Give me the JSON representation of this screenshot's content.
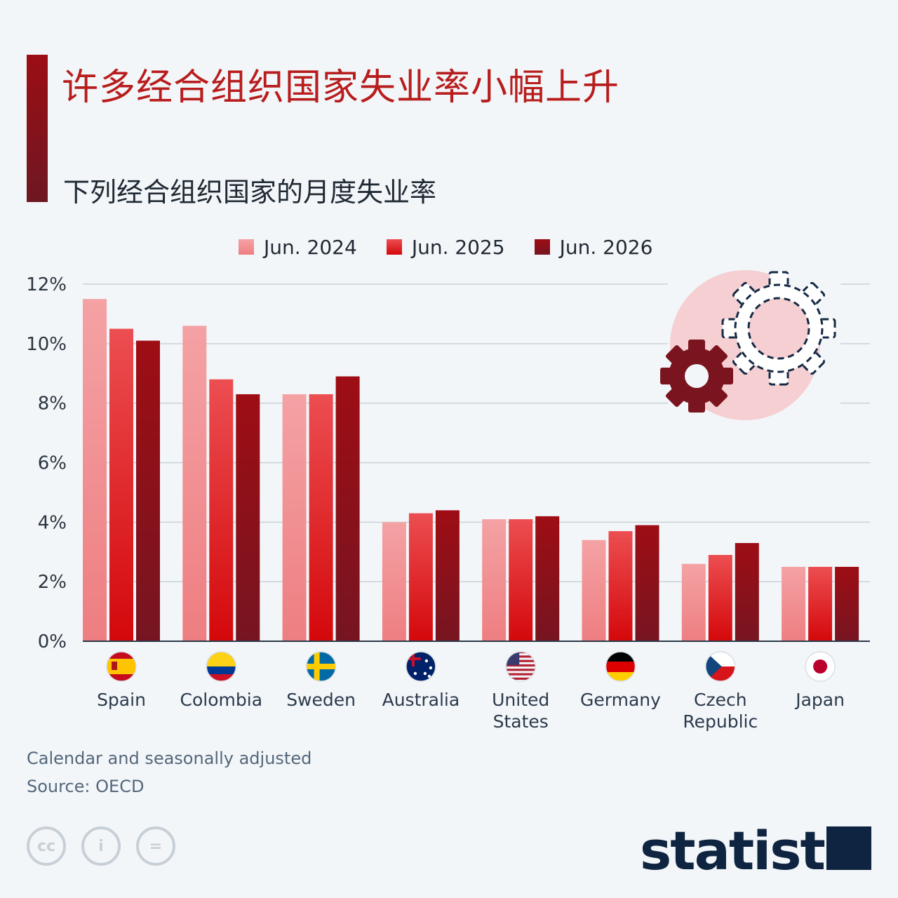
{
  "title": "许多经合组织国家失业率小幅上升",
  "subtitle": "下列经合组织国家的月度失业率",
  "colors": {
    "accent": "#9c0e14",
    "title": "#b81d1d",
    "series": [
      "#f0a4a6",
      "#e2262b",
      "#8e1018"
    ],
    "grid": "#c9d1d9",
    "axis": "#2b3540"
  },
  "legend": [
    "Jun. 2024",
    "Jun. 2025",
    "Jun. 2026"
  ],
  "chart_data": {
    "type": "bar",
    "title": "许多经合组织国家失业率小幅上升",
    "subtitle": "下列经合组织国家的月度失业率",
    "categories": [
      "Spain",
      "Colombia",
      "Sweden",
      "Australia",
      "United States",
      "Germany",
      "Czech Republic",
      "Japan"
    ],
    "category_lines": [
      [
        "Spain"
      ],
      [
        "Colombia"
      ],
      [
        "Sweden"
      ],
      [
        "Australia"
      ],
      [
        "United",
        "States"
      ],
      [
        "Germany"
      ],
      [
        "Czech",
        "Republic"
      ],
      [
        "Japan"
      ]
    ],
    "flags": [
      "spain-flag-icon",
      "colombia-flag-icon",
      "sweden-flag-icon",
      "australia-flag-icon",
      "united-states-flag-icon",
      "germany-flag-icon",
      "czech-republic-flag-icon",
      "japan-flag-icon"
    ],
    "series": [
      {
        "name": "Jun. 2024",
        "values": [
          11.5,
          10.6,
          8.3,
          4.0,
          4.1,
          3.4,
          2.6,
          2.5
        ]
      },
      {
        "name": "Jun. 2025",
        "values": [
          10.5,
          8.8,
          8.3,
          4.3,
          4.1,
          3.7,
          2.9,
          2.5
        ]
      },
      {
        "name": "Jun. 2026",
        "values": [
          10.1,
          8.3,
          8.9,
          4.4,
          4.2,
          3.9,
          3.3,
          2.5
        ]
      }
    ],
    "yticks": [
      "0%",
      "2%",
      "4%",
      "6%",
      "8%",
      "10%",
      "12%"
    ],
    "ylim": [
      0,
      12
    ],
    "unit": "%",
    "grid": true,
    "legend_position": "top"
  },
  "notes": {
    "adjusted": "Calendar and seasonally adjusted",
    "source": "Source: OECD"
  },
  "license_icons": [
    "creative-commons-icon",
    "attribution-icon",
    "no-derivatives-icon"
  ],
  "license_glyphs": [
    "cc",
    "i",
    "="
  ],
  "brand": "statista"
}
